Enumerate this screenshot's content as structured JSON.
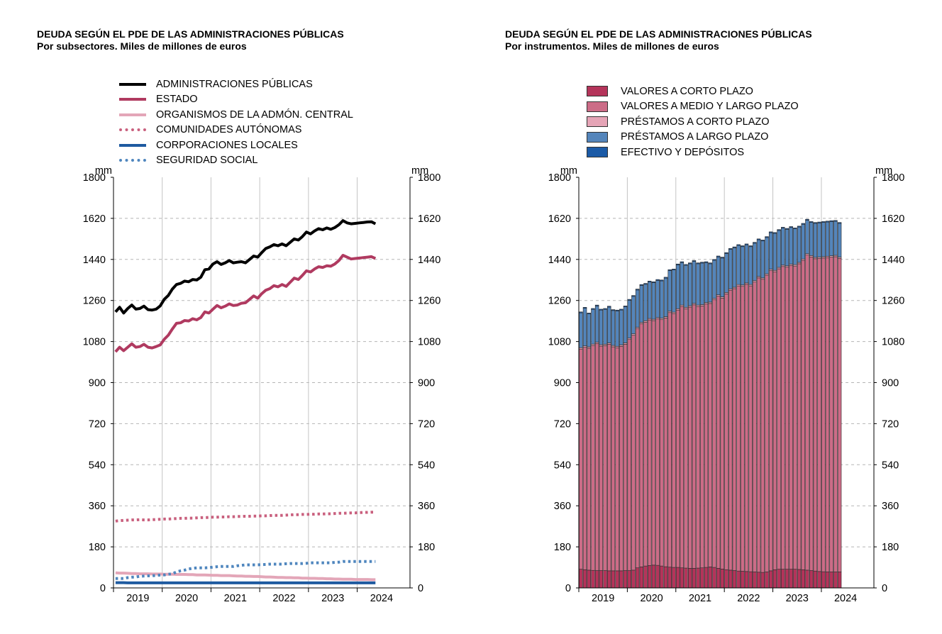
{
  "left": {
    "title": "DEUDA SEGÚN EL PDE DE LAS ADMINISTRACIONES PÚBLICAS",
    "subtitle": "Por subsectores. Miles de millones de euros"
  },
  "right": {
    "title": "DEUDA SEGÚN EL PDE DE LAS ADMINISTRACIONES PÚBLICAS",
    "subtitle": "Por instrumentos. Miles de millones de euros"
  },
  "colors": {
    "ap": "#000000",
    "estado": "#b03a60",
    "organismos": "#e3a6b8",
    "ccaa": "#c9607e",
    "ccll": "#1e5aa0",
    "ss": "#4f86be",
    "vcp": "#b4345a",
    "vmlp": "#cc6c87",
    "pcp": "#e5a4b6",
    "plp": "#5485bb",
    "efectivo": "#1b5aa6"
  },
  "chart_data": [
    {
      "type": "line",
      "title": "DEUDA SEGÚN EL PDE DE LAS ADMINISTRACIONES PÚBLICAS",
      "subtitle": "Por subsectores. Miles de millones de euros",
      "unit_left": "mm",
      "unit_right": "mm",
      "ylim": [
        0,
        1800
      ],
      "yticks": [
        0,
        180,
        360,
        540,
        720,
        900,
        1080,
        1260,
        1440,
        1620,
        1800
      ],
      "xticks": [
        "2019",
        "2020",
        "2021",
        "2022",
        "2023",
        "2024"
      ],
      "x_start": 2018.5,
      "x_end": 2024.583,
      "x": [
        2018.542,
        2018.625,
        2018.708,
        2018.792,
        2018.875,
        2018.958,
        2019.042,
        2019.125,
        2019.208,
        2019.292,
        2019.375,
        2019.458,
        2019.542,
        2019.625,
        2019.708,
        2019.792,
        2019.875,
        2019.958,
        2020.042,
        2020.125,
        2020.208,
        2020.292,
        2020.375,
        2020.458,
        2020.542,
        2020.625,
        2020.708,
        2020.792,
        2020.875,
        2020.958,
        2021.042,
        2021.125,
        2021.208,
        2021.292,
        2021.375,
        2021.458,
        2021.542,
        2021.625,
        2021.708,
        2021.792,
        2021.875,
        2021.958,
        2022.042,
        2022.125,
        2022.208,
        2022.292,
        2022.375,
        2022.458,
        2022.542,
        2022.625,
        2022.708,
        2022.792,
        2022.875,
        2022.958,
        2023.042,
        2023.125,
        2023.208,
        2023.292,
        2023.375,
        2023.458,
        2023.542,
        2023.625,
        2023.708,
        2023.792,
        2023.875
      ],
      "series": [
        {
          "name": "ADMINISTRACIONES PÚBLICAS",
          "style": "solid",
          "color_key": "ap",
          "values": [
            1210,
            1230,
            1205,
            1225,
            1240,
            1222,
            1225,
            1235,
            1220,
            1218,
            1222,
            1236,
            1265,
            1282,
            1310,
            1330,
            1335,
            1345,
            1342,
            1352,
            1350,
            1362,
            1395,
            1398,
            1420,
            1430,
            1418,
            1425,
            1435,
            1425,
            1428,
            1430,
            1425,
            1440,
            1455,
            1450,
            1470,
            1488,
            1495,
            1505,
            1500,
            1508,
            1500,
            1515,
            1530,
            1525,
            1540,
            1560,
            1552,
            1565,
            1575,
            1570,
            1578,
            1572,
            1580,
            1592,
            1610,
            1600,
            1596,
            1598,
            1600,
            1602,
            1604,
            1605,
            1596
          ]
        },
        {
          "name": "ESTADO",
          "style": "solid",
          "color_key": "estado",
          "values": [
            1035,
            1055,
            1040,
            1055,
            1070,
            1055,
            1058,
            1068,
            1055,
            1052,
            1058,
            1065,
            1090,
            1108,
            1135,
            1160,
            1162,
            1172,
            1170,
            1180,
            1175,
            1185,
            1210,
            1205,
            1222,
            1238,
            1228,
            1235,
            1245,
            1238,
            1240,
            1248,
            1250,
            1265,
            1280,
            1270,
            1290,
            1305,
            1312,
            1325,
            1320,
            1330,
            1322,
            1340,
            1358,
            1352,
            1370,
            1390,
            1385,
            1398,
            1408,
            1405,
            1412,
            1410,
            1420,
            1435,
            1458,
            1450,
            1442,
            1444,
            1446,
            1448,
            1450,
            1452,
            1444
          ]
        },
        {
          "name": "ORGANISMOS DE LA ADMÓN. CENTRAL",
          "style": "solid",
          "color_key": "organismos",
          "values": [
            66,
            65,
            65,
            64,
            63,
            63,
            62,
            62,
            62,
            61,
            61,
            61,
            60,
            60,
            60,
            59,
            59,
            59,
            58,
            58,
            57,
            57,
            57,
            56,
            55,
            55,
            54,
            54,
            54,
            53,
            52,
            52,
            51,
            51,
            50,
            50,
            49,
            48,
            48,
            47,
            46,
            46,
            45,
            45,
            44,
            44,
            43,
            43,
            42,
            42,
            41,
            41,
            40,
            40,
            39,
            39,
            38,
            38,
            38,
            37,
            37,
            37,
            37,
            36,
            36
          ]
        },
        {
          "name": "COMUNIDADES AUTÓNOMAS",
          "style": "dotted",
          "color_key": "ccaa",
          "values": [
            293,
            295,
            296,
            297,
            298,
            298,
            299,
            298,
            298,
            299,
            300,
            301,
            302,
            302,
            303,
            304,
            305,
            305,
            306,
            306,
            307,
            308,
            308,
            309,
            310,
            310,
            311,
            311,
            312,
            312,
            313,
            313,
            314,
            314,
            315,
            315,
            316,
            316,
            317,
            318,
            318,
            318,
            319,
            320,
            321,
            321,
            322,
            322,
            323,
            323,
            324,
            324,
            325,
            325,
            326,
            327,
            327,
            328,
            329,
            329,
            330,
            331,
            331,
            332,
            332
          ]
        },
        {
          "name": "CORPORACIONES LOCALES",
          "style": "solid",
          "color_key": "ccll",
          "values": [
            23,
            23,
            23,
            22,
            22,
            22,
            22,
            22,
            22,
            22,
            22,
            22,
            22,
            22,
            22,
            22,
            22,
            22,
            22,
            22,
            22,
            22,
            22,
            22,
            22,
            22,
            22,
            22,
            22,
            22,
            22,
            22,
            22,
            22,
            22,
            22,
            22,
            22,
            22,
            22,
            22,
            22,
            22,
            22,
            22,
            22,
            22,
            22,
            22,
            22,
            22,
            22,
            22,
            22,
            22,
            22,
            22,
            22,
            22,
            22,
            22,
            22,
            22,
            22,
            22
          ]
        },
        {
          "name": "SEGURIDAD SOCIAL",
          "style": "dotted",
          "color_key": "ss",
          "values": [
            41,
            41,
            41,
            45,
            47,
            48,
            51,
            52,
            53,
            53,
            55,
            56,
            57,
            60,
            62,
            70,
            75,
            78,
            83,
            86,
            88,
            88,
            88,
            89,
            91,
            93,
            94,
            94,
            94,
            94,
            97,
            99,
            101,
            101,
            101,
            101,
            102,
            103,
            104,
            104,
            104,
            104,
            106,
            107,
            107,
            107,
            107,
            108,
            110,
            110,
            110,
            110,
            110,
            110,
            112,
            113,
            116,
            116,
            116,
            116,
            116,
            116,
            116,
            116,
            116
          ]
        }
      ],
      "legend": [
        "ADMINISTRACIONES PÚBLICAS",
        "ESTADO",
        "ORGANISMOS DE LA ADMÓN. CENTRAL",
        "COMUNIDADES AUTÓNOMAS",
        "CORPORACIONES LOCALES",
        "SEGURIDAD SOCIAL"
      ]
    },
    {
      "type": "bar",
      "stacked": true,
      "title": "DEUDA SEGÚN EL PDE DE LAS ADMINISTRACIONES PÚBLICAS",
      "subtitle": "Por instrumentos. Miles de millones de euros",
      "unit_left": "mm",
      "unit_right": "mm",
      "ylim": [
        0,
        1800
      ],
      "yticks": [
        0,
        180,
        360,
        540,
        720,
        900,
        1080,
        1260,
        1440,
        1620,
        1800
      ],
      "xticks": [
        "2019",
        "2020",
        "2021",
        "2022",
        "2023",
        "2024"
      ],
      "x_start": 2018.5,
      "x_end": 2024.583,
      "x": [
        2018.542,
        2018.625,
        2018.708,
        2018.792,
        2018.875,
        2018.958,
        2019.042,
        2019.125,
        2019.208,
        2019.292,
        2019.375,
        2019.458,
        2019.542,
        2019.625,
        2019.708,
        2019.792,
        2019.875,
        2019.958,
        2020.042,
        2020.125,
        2020.208,
        2020.292,
        2020.375,
        2020.458,
        2020.542,
        2020.625,
        2020.708,
        2020.792,
        2020.875,
        2020.958,
        2021.042,
        2021.125,
        2021.208,
        2021.292,
        2021.375,
        2021.458,
        2021.542,
        2021.625,
        2021.708,
        2021.792,
        2021.875,
        2021.958,
        2022.042,
        2022.125,
        2022.208,
        2022.292,
        2022.375,
        2022.458,
        2022.542,
        2022.625,
        2022.708,
        2022.792,
        2022.875,
        2022.958,
        2023.042,
        2023.125,
        2023.208,
        2023.292,
        2023.375,
        2023.458,
        2023.542,
        2023.625,
        2023.708,
        2023.792,
        2023.875
      ],
      "series": [
        {
          "name": "VALORES A CORTO PLAZO",
          "color_key": "vcp",
          "values": [
            82,
            80,
            78,
            77,
            76,
            76,
            76,
            75,
            75,
            75,
            75,
            76,
            76,
            78,
            88,
            92,
            96,
            98,
            100,
            99,
            96,
            93,
            91,
            90,
            90,
            88,
            87,
            86,
            86,
            87,
            88,
            90,
            92,
            90,
            86,
            83,
            80,
            78,
            76,
            74,
            73,
            72,
            71,
            70,
            69,
            68,
            70,
            75,
            80,
            82,
            82,
            82,
            82,
            82,
            81,
            80,
            78,
            76,
            74,
            72,
            71,
            70,
            70,
            70,
            70
          ]
        },
        {
          "name": "VALORES A MEDIO Y LARGO PLAZO",
          "color_key": "vmlp",
          "values": [
            965,
            975,
            973,
            986,
            995,
            984,
            986,
            993,
            982,
            978,
            984,
            992,
            1013,
            1030,
            1048,
            1066,
            1069,
            1077,
            1072,
            1080,
            1080,
            1090,
            1116,
            1113,
            1128,
            1146,
            1137,
            1145,
            1155,
            1147,
            1148,
            1155,
            1155,
            1173,
            1193,
            1187,
            1209,
            1227,
            1236,
            1250,
            1249,
            1259,
            1253,
            1271,
            1290,
            1285,
            1301,
            1316,
            1306,
            1317,
            1327,
            1324,
            1331,
            1329,
            1340,
            1356,
            1381,
            1375,
            1369,
            1372,
            1375,
            1378,
            1380,
            1382,
            1374
          ]
        },
        {
          "name": "PRÉSTAMOS A CORTO PLAZO",
          "color_key": "pcp",
          "values": [
            6,
            6,
            6,
            6,
            6,
            6,
            6,
            6,
            6,
            6,
            6,
            6,
            6,
            6,
            6,
            6,
            6,
            6,
            6,
            6,
            6,
            6,
            6,
            6,
            6,
            6,
            6,
            6,
            6,
            6,
            6,
            6,
            6,
            6,
            6,
            6,
            6,
            6,
            6,
            6,
            6,
            6,
            6,
            6,
            6,
            6,
            6,
            6,
            6,
            6,
            6,
            6,
            6,
            6,
            6,
            6,
            6,
            6,
            6,
            6,
            6,
            6,
            6,
            6,
            6
          ]
        },
        {
          "name": "PRÉSTAMOS A LARGO PLAZO",
          "color_key": "plp",
          "values": [
            153,
            165,
            144,
            152,
            159,
            152,
            153,
            157,
            153,
            155,
            153,
            158,
            166,
            164,
            164,
            162,
            160,
            160,
            160,
            163,
            164,
            169,
            178,
            185,
            192,
            186,
            184,
            184,
            184,
            181,
            182,
            175,
            168,
            167,
            166,
            170,
            171,
            173,
            173,
            171,
            168,
            167,
            166,
            164,
            161,
            162,
            159,
            160,
            162,
            162,
            162,
            160,
            161,
            157,
            155,
            152,
            147,
            145,
            149,
            150,
            150,
            150,
            150,
            149,
            148
          ]
        },
        {
          "name": "EFECTIVO Y DEPÓSITOS",
          "color_key": "efectivo",
          "values": [
            4,
            4,
            4,
            4,
            4,
            4,
            4,
            4,
            4,
            4,
            4,
            4,
            4,
            4,
            4,
            4,
            4,
            4,
            4,
            4,
            4,
            4,
            4,
            4,
            4,
            4,
            4,
            4,
            4,
            4,
            4,
            4,
            4,
            4,
            4,
            4,
            4,
            4,
            4,
            4,
            4,
            4,
            4,
            4,
            4,
            4,
            4,
            4,
            4,
            4,
            4,
            4,
            4,
            4,
            4,
            4,
            4,
            4,
            4,
            4,
            4,
            4,
            4,
            4,
            4
          ]
        }
      ],
      "legend": [
        "VALORES A CORTO PLAZO",
        "VALORES A MEDIO Y LARGO PLAZO",
        "PRÉSTAMOS A CORTO PLAZO",
        "PRÉSTAMOS A LARGO PLAZO",
        "EFECTIVO Y DEPÓSITOS"
      ]
    }
  ]
}
